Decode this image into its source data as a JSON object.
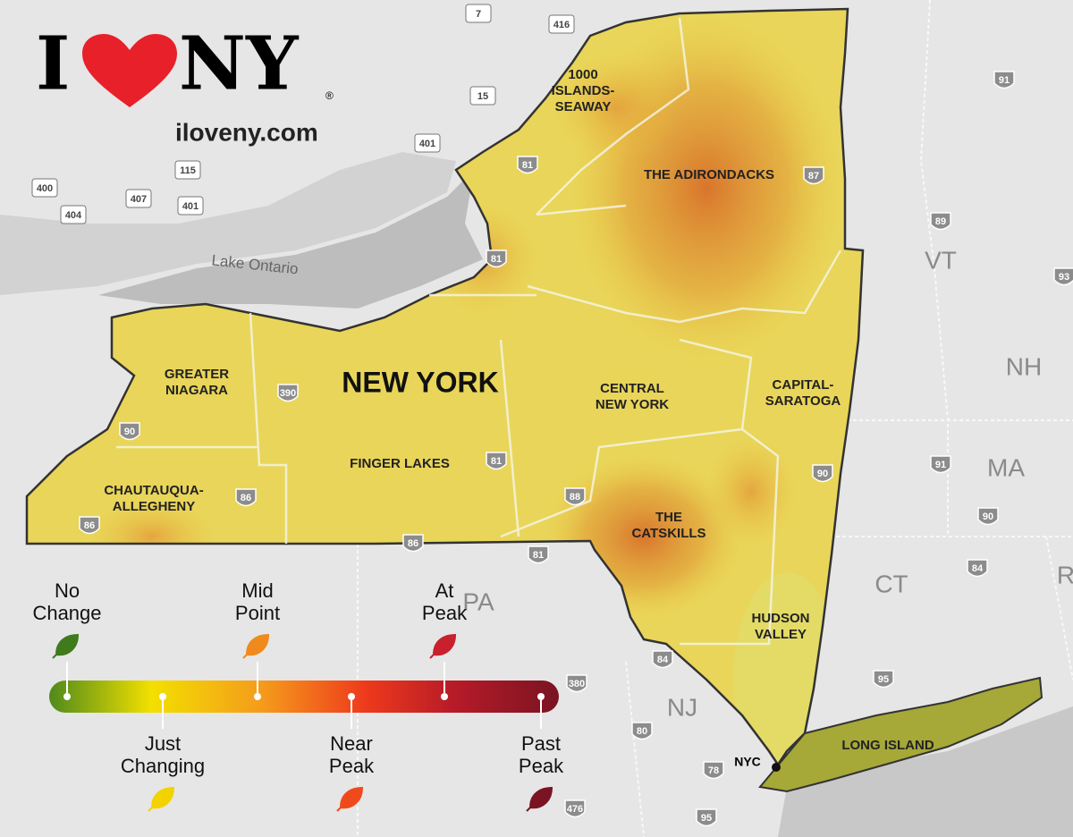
{
  "logo": {
    "letter": "I",
    "ny": "NY",
    "mark": "®",
    "url": "iloveny.com"
  },
  "water_label": "Lake Ontario",
  "state_title": "NEW YORK",
  "states": [
    "VT",
    "NH",
    "MA",
    "CT",
    "NJ",
    "PA",
    "R"
  ],
  "regions": [
    {
      "lines": [
        "1000",
        "ISLANDS-",
        "SEAWAY"
      ]
    },
    {
      "lines": [
        "THE ADIRONDACKS"
      ]
    },
    {
      "lines": [
        "GREATER",
        "NIAGARA"
      ]
    },
    {
      "lines": [
        "CENTRAL",
        "NEW YORK"
      ]
    },
    {
      "lines": [
        "CAPITAL-",
        "SARATOGA"
      ]
    },
    {
      "lines": [
        "FINGER LAKES"
      ]
    },
    {
      "lines": [
        "CHAUTAUQUA-",
        "ALLEGHENY"
      ]
    },
    {
      "lines": [
        "THE",
        "CATSKILLS"
      ]
    },
    {
      "lines": [
        "HUDSON",
        "VALLEY"
      ]
    },
    {
      "lines": [
        "LONG ISLAND"
      ]
    }
  ],
  "city": "NYC",
  "shields": [
    "7",
    "416",
    "15",
    "401",
    "115",
    "400",
    "407",
    "404",
    "401",
    "81",
    "87",
    "91",
    "89",
    "81",
    "390",
    "90",
    "81",
    "86",
    "86",
    "88",
    "86",
    "81",
    "90",
    "91",
    "90",
    "84",
    "84",
    "380",
    "80",
    "95",
    "78",
    "476",
    "95",
    "93"
  ],
  "legend": {
    "items": [
      {
        "lines": [
          "No",
          "Change"
        ],
        "color": "#3f7a1c"
      },
      {
        "lines": [
          "Just",
          "Changing"
        ],
        "color": "#f2d300"
      },
      {
        "lines": [
          "Mid",
          "Point"
        ],
        "color": "#f08a1c"
      },
      {
        "lines": [
          "Near",
          "Peak"
        ],
        "color": "#f04a1c"
      },
      {
        "lines": [
          "At",
          "Peak"
        ],
        "color": "#c8202c"
      },
      {
        "lines": [
          "Past",
          "Peak"
        ],
        "color": "#7a1422"
      }
    ]
  }
}
